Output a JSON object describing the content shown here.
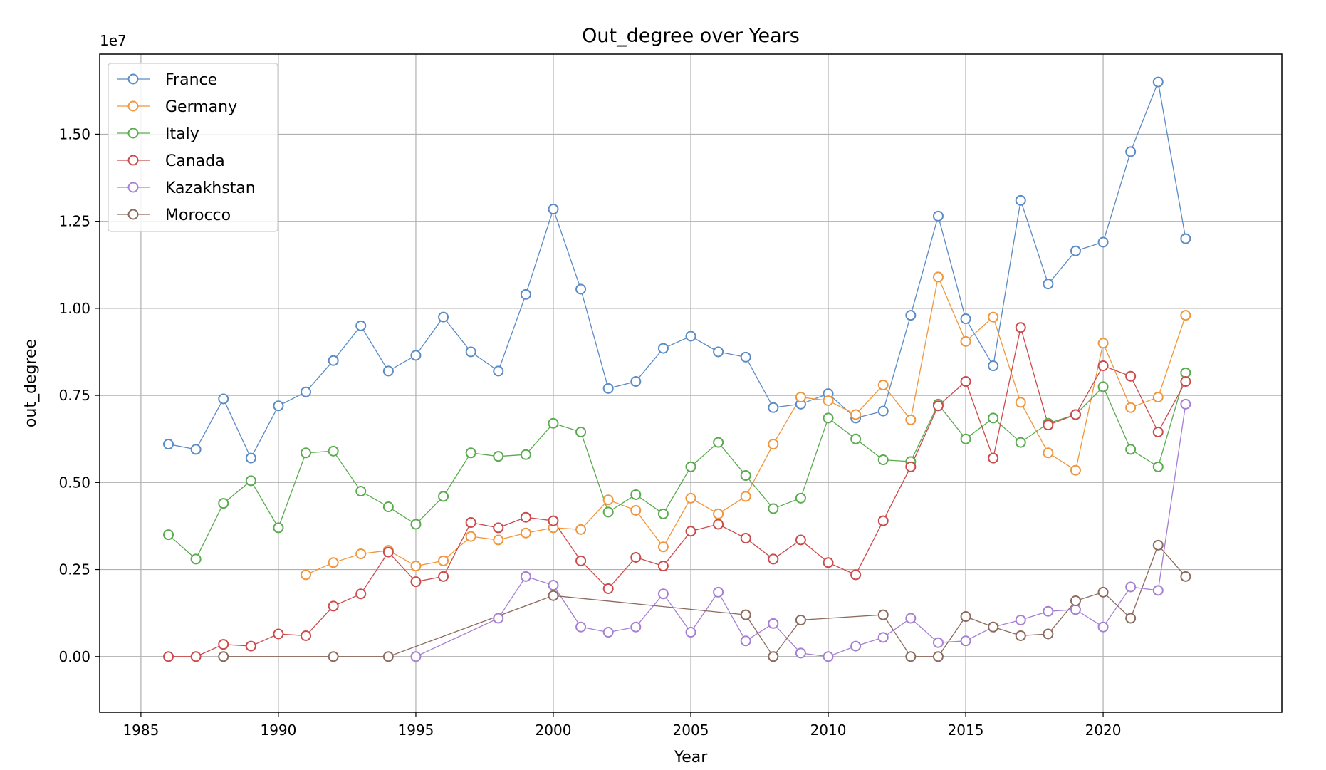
{
  "chart_data": {
    "type": "line",
    "title": "Out_degree over Years",
    "xlabel": "Year",
    "ylabel": "out_degree",
    "y_scale_label": "1e7",
    "y_multiplier": 10000000,
    "xlim": [
      1983.5,
      2026.5
    ],
    "ylim": [
      -0.16,
      1.73
    ],
    "x_ticks": [
      1985,
      1990,
      1995,
      2000,
      2005,
      2010,
      2015,
      2020
    ],
    "y_ticks": [
      0.0,
      0.25,
      0.5,
      0.75,
      1.0,
      1.25,
      1.5
    ],
    "y_tick_labels": [
      "0.00",
      "0.25",
      "0.50",
      "0.75",
      "1.00",
      "1.25",
      "1.50"
    ],
    "grid": true,
    "legend_position": "top-left",
    "marker": "hollow-circle",
    "series": [
      {
        "name": "France",
        "color": "#5b8bc5",
        "x": [
          1986,
          1987,
          1988,
          1989,
          1990,
          1991,
          1992,
          1993,
          1994,
          1995,
          1996,
          1997,
          1998,
          1999,
          2000,
          2001,
          2002,
          2003,
          2004,
          2005,
          2006,
          2007,
          2008,
          2009,
          2010,
          2011,
          2012,
          2013,
          2014,
          2015,
          2016,
          2017,
          2018,
          2019,
          2020,
          2021,
          2022,
          2023
        ],
        "y": [
          0.61,
          0.595,
          0.74,
          0.57,
          0.72,
          0.76,
          0.85,
          0.95,
          0.82,
          0.865,
          0.975,
          0.875,
          0.82,
          1.04,
          1.285,
          1.055,
          0.77,
          0.79,
          0.885,
          0.92,
          0.875,
          0.86,
          0.715,
          0.725,
          0.755,
          0.685,
          0.705,
          0.98,
          1.265,
          0.97,
          0.835,
          1.31,
          1.07,
          1.165,
          1.19,
          1.45,
          1.65,
          1.2
        ]
      },
      {
        "name": "Germany",
        "color": "#f0963c",
        "x": [
          1991,
          1992,
          1993,
          1994,
          1995,
          1996,
          1997,
          1998,
          1999,
          2000,
          2001,
          2002,
          2003,
          2004,
          2005,
          2006,
          2007,
          2008,
          2009,
          2010,
          2011,
          2012,
          2013,
          2014,
          2015,
          2016,
          2017,
          2018,
          2019,
          2020,
          2021,
          2022,
          2023
        ],
        "y": [
          0.235,
          0.27,
          0.295,
          0.305,
          0.26,
          0.275,
          0.345,
          0.335,
          0.355,
          0.37,
          0.365,
          0.45,
          0.42,
          0.315,
          0.455,
          0.41,
          0.46,
          0.61,
          0.745,
          0.735,
          0.695,
          0.78,
          0.68,
          1.09,
          0.905,
          0.975,
          0.73,
          0.585,
          0.535,
          0.9,
          0.715,
          0.745,
          0.98
        ]
      },
      {
        "name": "Italy",
        "color": "#5aab4f",
        "x": [
          1986,
          1987,
          1988,
          1989,
          1990,
          1991,
          1992,
          1993,
          1994,
          1995,
          1996,
          1997,
          1998,
          1999,
          2000,
          2001,
          2002,
          2003,
          2004,
          2005,
          2006,
          2007,
          2008,
          2009,
          2010,
          2011,
          2012,
          2013,
          2014,
          2015,
          2016,
          2017,
          2018,
          2019,
          2020,
          2021,
          2022,
          2023
        ],
        "y": [
          0.35,
          0.28,
          0.44,
          0.505,
          0.37,
          0.585,
          0.59,
          0.475,
          0.43,
          0.38,
          0.46,
          0.585,
          0.575,
          0.58,
          0.67,
          0.645,
          0.415,
          0.465,
          0.41,
          0.545,
          0.615,
          0.52,
          0.425,
          0.455,
          0.685,
          0.625,
          0.565,
          0.56,
          0.725,
          0.625,
          0.685,
          0.615,
          0.67,
          0.695,
          0.775,
          0.595,
          0.545,
          0.815
        ]
      },
      {
        "name": "Canada",
        "color": "#cc4a4a",
        "x": [
          1986,
          1987,
          1988,
          1989,
          1990,
          1991,
          1992,
          1993,
          1994,
          1995,
          1996,
          1997,
          1998,
          1999,
          2000,
          2001,
          2002,
          2003,
          2004,
          2005,
          2006,
          2007,
          2008,
          2009,
          2010,
          2011,
          2012,
          2013,
          2014,
          2015,
          2016,
          2017,
          2018,
          2019,
          2020,
          2021,
          2022,
          2023
        ],
        "y": [
          0.0,
          0.0,
          0.035,
          0.03,
          0.065,
          0.06,
          0.145,
          0.18,
          0.3,
          0.215,
          0.23,
          0.385,
          0.37,
          0.4,
          0.39,
          0.275,
          0.195,
          0.285,
          0.26,
          0.36,
          0.38,
          0.34,
          0.28,
          0.335,
          0.27,
          0.235,
          0.39,
          0.545,
          0.72,
          0.79,
          0.57,
          0.945,
          0.665,
          0.695,
          0.835,
          0.805,
          0.645,
          0.79
        ]
      },
      {
        "name": "Kazakhstan",
        "color": "#a57fd3",
        "x": [
          1995,
          1998,
          1999,
          2000,
          2001,
          2002,
          2003,
          2004,
          2005,
          2006,
          2007,
          2008,
          2009,
          2010,
          2011,
          2012,
          2013,
          2014,
          2015,
          2016,
          2017,
          2018,
          2019,
          2020,
          2021,
          2022,
          2023
        ],
        "y": [
          0.0,
          0.11,
          0.23,
          0.205,
          0.085,
          0.07,
          0.085,
          0.18,
          0.07,
          0.185,
          0.045,
          0.095,
          0.01,
          0.0,
          0.03,
          0.055,
          0.11,
          0.04,
          0.045,
          0.085,
          0.105,
          0.13,
          0.135,
          0.085,
          0.2,
          0.19,
          0.725
        ]
      },
      {
        "name": "Morocco",
        "color": "#8c6a5d",
        "x": [
          1988,
          1992,
          1994,
          2000,
          2007,
          2008,
          2009,
          2012,
          2013,
          2014,
          2015,
          2016,
          2017,
          2018,
          2019,
          2020,
          2021,
          2022,
          2023
        ],
        "y": [
          0.0,
          0.0,
          0.0,
          0.175,
          0.12,
          0.0,
          0.105,
          0.12,
          0.0,
          0.0,
          0.115,
          0.085,
          0.06,
          0.065,
          0.16,
          0.185,
          0.11,
          0.32,
          0.23
        ]
      }
    ]
  }
}
